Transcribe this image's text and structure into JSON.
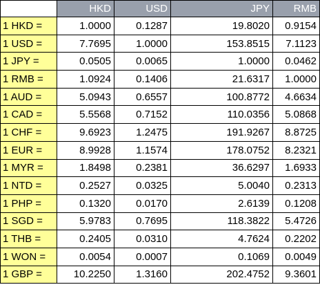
{
  "table": {
    "headers": [
      "",
      "HKD",
      "USD",
      "JPY",
      "RMB"
    ],
    "rows": [
      {
        "label": "1 HKD =",
        "values": [
          "1.0000",
          "0.1287",
          "19.8020",
          "0.9154"
        ]
      },
      {
        "label": "1 USD =",
        "values": [
          "7.7695",
          "1.0000",
          "153.8515",
          "7.1123"
        ]
      },
      {
        "label": "1 JPY =",
        "values": [
          "0.0505",
          "0.0065",
          "1.0000",
          "0.0462"
        ]
      },
      {
        "label": "1 RMB =",
        "values": [
          "1.0924",
          "0.1406",
          "21.6317",
          "1.0000"
        ]
      },
      {
        "label": "1 AUD =",
        "values": [
          "5.0943",
          "0.6557",
          "100.8772",
          "4.6634"
        ]
      },
      {
        "label": "1 CAD =",
        "values": [
          "5.5568",
          "0.7152",
          "110.0356",
          "5.0868"
        ]
      },
      {
        "label": "1 CHF =",
        "values": [
          "9.6923",
          "1.2475",
          "191.9267",
          "8.8725"
        ]
      },
      {
        "label": "1 EUR =",
        "values": [
          "8.9928",
          "1.1574",
          "178.0752",
          "8.2321"
        ]
      },
      {
        "label": "1 MYR =",
        "values": [
          "1.8498",
          "0.2381",
          "36.6297",
          "1.6933"
        ]
      },
      {
        "label": "1 NTD =",
        "values": [
          "0.2527",
          "0.0325",
          "5.0040",
          "0.2313"
        ]
      },
      {
        "label": "1 PHP =",
        "values": [
          "0.1320",
          "0.0170",
          "2.6139",
          "0.1208"
        ]
      },
      {
        "label": "1 SGD =",
        "values": [
          "5.9783",
          "0.7695",
          "118.3822",
          "5.4726"
        ]
      },
      {
        "label": "1 THB =",
        "values": [
          "0.2405",
          "0.0310",
          "4.7624",
          "0.2202"
        ]
      },
      {
        "label": "1 WON =",
        "values": [
          "0.0054",
          "0.0007",
          "0.1069",
          "0.0049"
        ]
      },
      {
        "label": "1 GBP =",
        "values": [
          "10.2250",
          "1.3160",
          "202.4752",
          "9.3601"
        ]
      }
    ]
  },
  "colors": {
    "header_bg": "#99a0ac",
    "header_text": "#ffffff",
    "label_bg": "#ffff99",
    "border": "#000000"
  }
}
